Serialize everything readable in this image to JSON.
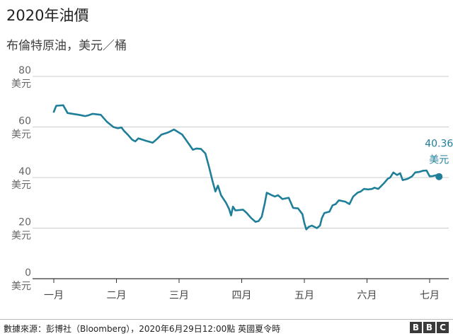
{
  "header": {
    "title": "2020年油價",
    "subtitle": "布倫特原油，美元／桶"
  },
  "footer": {
    "source": "數據來源：彭博社（Bloomberg），2020年6月29日12:00點 英國夏令時",
    "logo_letters": [
      "B",
      "B",
      "C"
    ]
  },
  "colors": {
    "line": "#1f7f99",
    "grid": "#cccccc",
    "axis": "#333333"
  },
  "chart_data": {
    "type": "line",
    "title": "2020年油價",
    "subtitle": "布倫特原油，美元／桶",
    "ylim": [
      0,
      80
    ],
    "y_ticks": [
      {
        "value": 80,
        "label": "80",
        "unit": "美元"
      },
      {
        "value": 60,
        "label": "60",
        "unit": "美元"
      },
      {
        "value": 40,
        "label": "40",
        "unit": "美元"
      },
      {
        "value": 20,
        "label": "20",
        "unit": "美元"
      },
      {
        "value": 0,
        "label": "0",
        "unit": "美元"
      }
    ],
    "x_ticks": [
      "一月",
      "二月",
      "三月",
      "四月",
      "五月",
      "六月",
      "七月"
    ],
    "grid": true,
    "series": [
      {
        "values": [
          [
            0.0,
            66.0
          ],
          [
            0.04,
            68.4
          ],
          [
            0.15,
            68.6
          ],
          [
            0.22,
            65.5
          ],
          [
            0.4,
            64.8
          ],
          [
            0.5,
            64.3
          ],
          [
            0.55,
            64.6
          ],
          [
            0.62,
            65.2
          ],
          [
            0.75,
            64.8
          ],
          [
            0.85,
            62.0
          ],
          [
            0.95,
            60.0
          ],
          [
            1.02,
            59.5
          ],
          [
            1.08,
            59.8
          ],
          [
            1.12,
            58.5
          ],
          [
            1.18,
            57.0
          ],
          [
            1.25,
            55.0
          ],
          [
            1.3,
            54.3
          ],
          [
            1.35,
            55.5
          ],
          [
            1.48,
            54.5
          ],
          [
            1.58,
            53.8
          ],
          [
            1.65,
            55.3
          ],
          [
            1.72,
            57.0
          ],
          [
            1.82,
            57.8
          ],
          [
            1.92,
            59.0
          ],
          [
            2.05,
            57.0
          ],
          [
            2.15,
            53.5
          ],
          [
            2.22,
            51.0
          ],
          [
            2.28,
            51.5
          ],
          [
            2.35,
            51.3
          ],
          [
            2.42,
            49.5
          ],
          [
            2.48,
            44.0
          ],
          [
            2.53,
            39.0
          ],
          [
            2.58,
            34.5
          ],
          [
            2.62,
            36.8
          ],
          [
            2.67,
            33.0
          ],
          [
            2.75,
            30.0
          ],
          [
            2.8,
            27.5
          ],
          [
            2.83,
            25.0
          ],
          [
            2.86,
            28.5
          ],
          [
            2.9,
            27.0
          ],
          [
            3.02,
            27.3
          ],
          [
            3.08,
            26.0
          ],
          [
            3.15,
            24.0
          ],
          [
            3.22,
            22.5
          ],
          [
            3.27,
            22.8
          ],
          [
            3.32,
            24.5
          ],
          [
            3.37,
            30.0
          ],
          [
            3.4,
            34.0
          ],
          [
            3.48,
            33.0
          ],
          [
            3.53,
            32.5
          ],
          [
            3.58,
            33.0
          ],
          [
            3.65,
            31.5
          ],
          [
            3.75,
            32.0
          ],
          [
            3.82,
            28.0
          ],
          [
            3.9,
            27.8
          ],
          [
            3.97,
            25.5
          ],
          [
            4.0,
            22.0
          ],
          [
            4.03,
            19.5
          ],
          [
            4.07,
            20.5
          ],
          [
            4.12,
            21.0
          ],
          [
            4.2,
            20.0
          ],
          [
            4.25,
            21.0
          ],
          [
            4.28,
            24.0
          ],
          [
            4.32,
            26.0
          ],
          [
            4.4,
            26.5
          ],
          [
            4.45,
            29.0
          ],
          [
            4.5,
            29.5
          ],
          [
            4.55,
            31.0
          ],
          [
            4.65,
            30.5
          ],
          [
            4.72,
            29.5
          ],
          [
            4.78,
            32.5
          ],
          [
            4.85,
            34.0
          ],
          [
            4.9,
            34.5
          ],
          [
            4.95,
            35.5
          ],
          [
            5.02,
            35.3
          ],
          [
            5.08,
            35.5
          ],
          [
            5.12,
            36.0
          ],
          [
            5.18,
            35.5
          ],
          [
            5.22,
            36.5
          ],
          [
            5.28,
            38.0
          ],
          [
            5.33,
            39.5
          ],
          [
            5.37,
            40.0
          ],
          [
            5.42,
            42.0
          ],
          [
            5.48,
            41.0
          ],
          [
            5.53,
            41.7
          ],
          [
            5.57,
            39.0
          ],
          [
            5.65,
            39.5
          ],
          [
            5.72,
            40.5
          ],
          [
            5.77,
            42.0
          ],
          [
            5.83,
            42.2
          ],
          [
            5.9,
            42.7
          ],
          [
            5.95,
            42.8
          ],
          [
            6.0,
            40.5
          ],
          [
            6.05,
            40.6
          ],
          [
            6.1,
            40.9
          ],
          [
            6.15,
            40.36
          ]
        ]
      }
    ],
    "annotation": {
      "value": "40.36",
      "unit": "美元"
    }
  }
}
